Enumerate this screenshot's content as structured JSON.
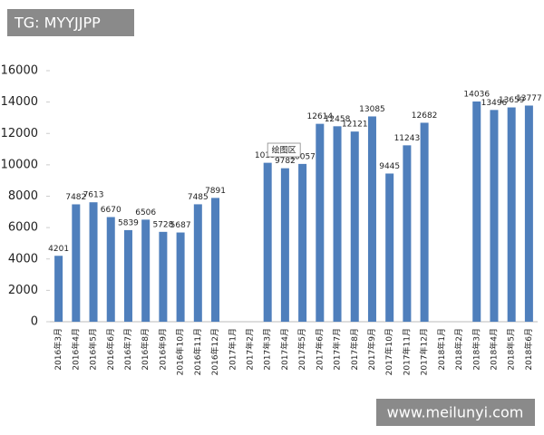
{
  "watermark": "TG: MYYJJPP",
  "site": "www.meilunyi.com",
  "tooltip": "绘图区",
  "chart_data": {
    "type": "bar",
    "categories": [
      "2016年3月",
      "2016年4月",
      "2016年5月",
      "2016年6月",
      "2016年7月",
      "2016年8月",
      "2016年9月",
      "2016年10月",
      "2016年11月",
      "2016年12月",
      "2017年1月",
      "2017年2月",
      "2017年3月",
      "2017年4月",
      "2017年5月",
      "2017年6月",
      "2017年7月",
      "2017年8月",
      "2017年9月",
      "2017年10月",
      "2017年11月",
      "2017年12月",
      "2018年1月",
      "2018年2月",
      "2018年3月",
      "2018年4月",
      "2018年5月",
      "2018年6月"
    ],
    "values": [
      4201,
      7482,
      7613,
      6670,
      5839,
      6506,
      5728,
      5687,
      7485,
      7891,
      null,
      null,
      10130,
      9782,
      10057,
      12614,
      12458,
      12121,
      13085,
      9445,
      11243,
      12682,
      null,
      null,
      14036,
      13496,
      13659,
      13777
    ],
    "color": "#4f7fbc",
    "ylim": [
      0,
      16000
    ],
    "yticks": [
      0,
      2000,
      4000,
      6000,
      8000,
      10000,
      12000,
      14000,
      16000
    ],
    "grid": false
  }
}
